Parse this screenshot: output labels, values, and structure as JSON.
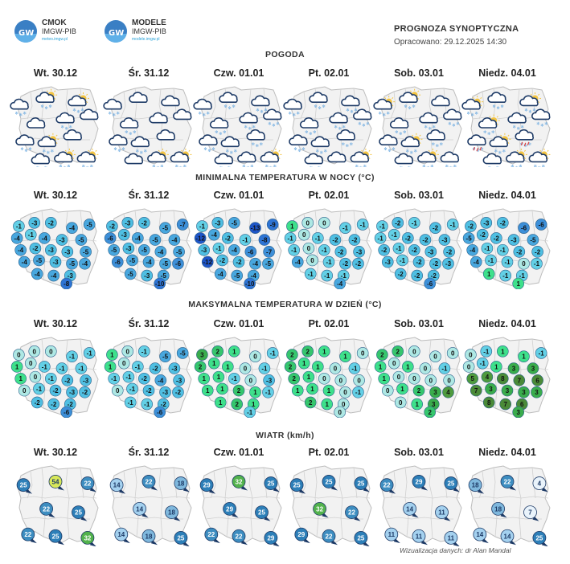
{
  "header": {
    "logo1": {
      "line1": "CMOK",
      "line2": "IMGW-PIB",
      "line3": "meteo.imgw.pl"
    },
    "logo2": {
      "line1": "MODELE",
      "line2": "IMGW-PIB",
      "line3": "modele.imgw.pl"
    },
    "logo_mark_text": "GW",
    "title": "PROGNOZA SYNOPTYCZNA",
    "subtitle": "Opracowano: 29.12.2025 14:30"
  },
  "days": [
    "Wt. 30.12",
    "Śr. 31.12",
    "Czw. 01.01",
    "Pt. 02.01",
    "Sob. 03.01",
    "Niedz. 04.01"
  ],
  "sections": {
    "weather": "POGODA",
    "tmin": "MINIMALNA TEMPERATURA W NOCY (°C)",
    "tmax": "MAKSYMALNA TEMPERATURA W DZIEŃ (°C)",
    "wind": "WIATR (km/h)"
  },
  "weather_icons": [
    [
      "snow-cloud-icon",
      "partly-cloudy-snow-icon",
      "partly-cloudy-snow-icon",
      "cloud-icon",
      "snow-cloud-icon",
      "cloud-icon",
      "snow-cloud-icon",
      "partly-cloudy-snow-icon",
      "cloud-icon",
      "snow-cloud-icon",
      "partly-cloudy-snow-icon",
      "partly-cloudy-snow-icon"
    ],
    [
      "snow-cloud-icon",
      "cloud-icon",
      "cloud-icon",
      "snow-cloud-icon",
      "cloud-icon",
      "cloud-icon",
      "snow-cloud-icon",
      "snow-cloud-icon",
      "cloud-icon",
      "cloud-icon",
      "partly-cloudy-snow-icon",
      "partly-cloudy-snow-icon"
    ],
    [
      "snow-cloud-icon",
      "snow-cloud-icon",
      "snow-cloud-icon",
      "snow-cloud-icon",
      "snow-cloud-icon",
      "snow-cloud-icon",
      "snow-cloud-icon",
      "snow-cloud-icon",
      "snow-cloud-icon",
      "snow-cloud-icon",
      "snow-cloud-icon",
      "partly-cloudy-snow-icon"
    ],
    [
      "snow-cloud-icon",
      "snow-cloud-icon",
      "snow-cloud-icon",
      "snow-cloud-icon",
      "snow-cloud-icon",
      "snow-cloud-icon",
      "snow-cloud-icon",
      "snow-cloud-icon",
      "snow-cloud-icon",
      "snow-cloud-icon",
      "cloud-icon",
      "partly-cloudy-snow-icon"
    ],
    [
      "partly-cloudy-snow-icon",
      "partly-cloudy-snow-icon",
      "cloud-icon",
      "snow-cloud-icon",
      "snow-cloud-icon",
      "snow-cloud-icon",
      "snow-cloud-icon",
      "partly-cloudy-snow-icon",
      "snow-cloud-icon",
      "snow-cloud-icon",
      "partly-cloudy-snow-icon",
      "snow-cloud-icon"
    ],
    [
      "partly-cloudy-snow-icon",
      "snow-cloud-icon",
      "partly-cloudy-snow-icon",
      "partly-cloudy-snow-icon",
      "snow-cloud-icon",
      "snow-cloud-icon",
      "rain-snow-icon",
      "partly-cloudy-snow-icon",
      "rain-snow-icon",
      "snow-cloud-icon",
      "partly-cloudy-snow-icon",
      "partly-cloudy-snow-icon"
    ]
  ],
  "tmin": [
    [
      "-1",
      "-3",
      "-2",
      "-4",
      "-5",
      "-4",
      "-1",
      "-4",
      "-3",
      "-5",
      "-4",
      "-2",
      "-3",
      "-3",
      "-5",
      "-4",
      "-5",
      "-3",
      "-5",
      "-4",
      "-4",
      "-4",
      "-3",
      "-8"
    ],
    [
      "-2",
      "-3",
      "-2",
      "-5",
      "-7",
      "-6",
      "-3",
      "-4",
      "-5",
      "-4",
      "-5",
      "-3",
      "-5",
      "-4",
      "-5",
      "-6",
      "-5",
      "-4",
      "-5",
      "-6",
      "-5",
      "-3",
      "-5",
      "-10"
    ],
    [
      "-1",
      "-3",
      "-5",
      "-13",
      "-9",
      "-12",
      "-4",
      "-2",
      "-1",
      "-8",
      "-3",
      "-1",
      "-4",
      "-6",
      "-7",
      "-12",
      "-2",
      "-2",
      "-4",
      "-5",
      "-4",
      "-5",
      "-4",
      "-10"
    ],
    [
      "1",
      "0",
      "0",
      "-1",
      "-1",
      "-1",
      "0",
      "-1",
      "-2",
      "-2",
      "-1",
      "0",
      "-1",
      "-2",
      "-3",
      "-4",
      "0",
      "-1",
      "-2",
      "-2",
      "-1",
      "-1",
      "-1",
      "-4"
    ],
    [
      "-1",
      "-2",
      "-1",
      "-2",
      "-1",
      "-1",
      "-1",
      "-2",
      "-2",
      "-3",
      "-2",
      "-1",
      "-2",
      "-3",
      "-2",
      "-3",
      "-1",
      "-2",
      "-2",
      "-3",
      "-2",
      "-2",
      "-2",
      "-6"
    ],
    [
      "-2",
      "-3",
      "-2",
      "-6",
      "-6",
      "-5",
      "-2",
      "-2",
      "-3",
      "-5",
      "-4",
      "-1",
      "-1",
      "-2",
      "-2",
      "-4",
      "-1",
      "-1",
      "0",
      "-1",
      "1",
      "-1",
      "-1",
      "1"
    ]
  ],
  "tmax": [
    [
      "0",
      "0",
      "0",
      "-1",
      "-1",
      "1",
      "0",
      "-1",
      "-1",
      "-1",
      "1",
      "0",
      "-1",
      "-2",
      "-3",
      "0",
      "-1",
      "-2",
      "-3",
      "-2",
      "-2",
      "-2",
      "-2",
      "-6"
    ],
    [
      "1",
      "0",
      "-1",
      "-5",
      "-5",
      "1",
      "0",
      "-1",
      "-2",
      "-3",
      "-1",
      "-1",
      "-2",
      "-4",
      "-3",
      "0",
      "-1",
      "-2",
      "-3",
      "-2",
      "-1",
      "-1",
      "-2",
      "-6"
    ],
    [
      "3",
      "2",
      "1",
      "0",
      "-1",
      "2",
      "1",
      "1",
      "0",
      "-1",
      "1",
      "1",
      "-1",
      "0",
      "-3",
      "1",
      "1",
      "2",
      "1",
      "-1",
      "1",
      "2",
      "1",
      "-1"
    ],
    [
      "2",
      "2",
      "1",
      "1",
      "0",
      "2",
      "1",
      "1",
      "0",
      "-1",
      "2",
      "1",
      "0",
      "0",
      "0",
      "1",
      "1",
      "1",
      "0",
      "-1",
      "2",
      "1",
      "0",
      "0"
    ],
    [
      "2",
      "2",
      "0",
      "0",
      "0",
      "1",
      "0",
      "1",
      "0",
      "-1",
      "1",
      "0",
      "0",
      "0",
      "0",
      "0",
      "1",
      "2",
      "3",
      "4",
      "0",
      "1",
      "3",
      "2"
    ],
    [
      "0",
      "-1",
      "1",
      "1",
      "-1",
      "0",
      "-1",
      "1",
      "3",
      "3",
      "5",
      "4",
      "8",
      "7",
      "6",
      "7",
      "3",
      "3",
      "3",
      "3",
      "8",
      "7",
      "6",
      "3"
    ]
  ],
  "wind": [
    [
      "25",
      "54",
      "22",
      "22",
      "25",
      "22",
      "25",
      "32"
    ],
    [
      "14",
      "22",
      "18",
      "14",
      "18",
      "14",
      "18",
      "25"
    ],
    [
      "29",
      "32",
      "25",
      "29",
      "25",
      "22",
      "22",
      "29"
    ],
    [
      "25",
      "25",
      "25",
      "32",
      "22",
      "29",
      "22",
      "25"
    ],
    [
      "22",
      "29",
      "25",
      "14",
      "11",
      "11",
      "11",
      "11"
    ],
    [
      "18",
      "22",
      "4",
      "18",
      "7",
      "14",
      "14",
      "25"
    ]
  ],
  "credit": "Wizualizacja danych: dr Alan Mandal",
  "colors": {
    "brand_blue": "#3a7fc4",
    "poland_fill": "#f1f1f1",
    "border": "#c9c9c9"
  }
}
